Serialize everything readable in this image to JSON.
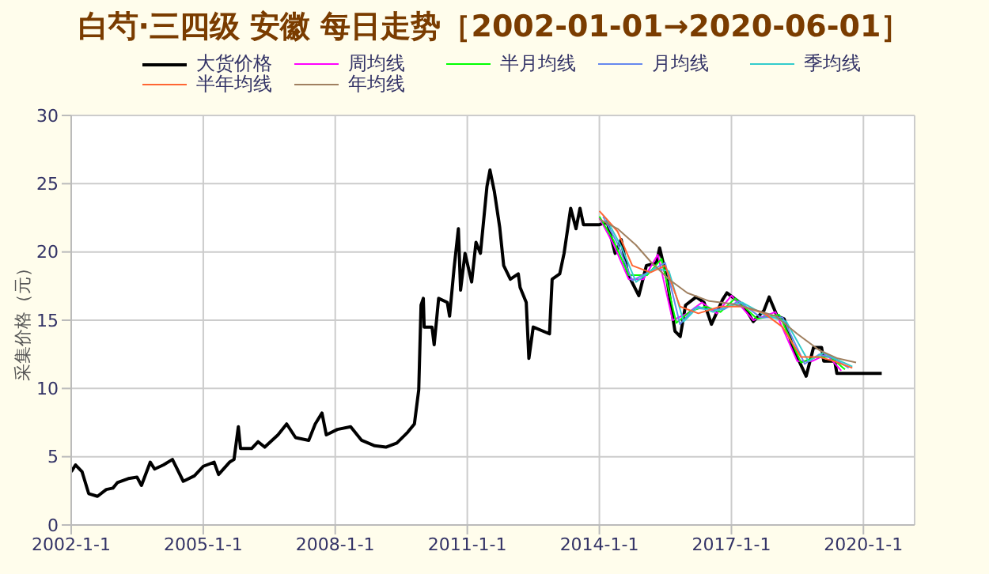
{
  "chart_data": {
    "type": "line",
    "title": "白芍·三四级 安徽 每日走势［2002-01-01→2020-06-01］",
    "ylabel": "采集价格（元）",
    "xlim": [
      "2002-01-01",
      "2021-03-01"
    ],
    "xticks": [
      {
        "value": "2002-01-01",
        "label": "2002-1-1"
      },
      {
        "value": "2005-01-01",
        "label": "2005-1-1"
      },
      {
        "value": "2008-01-01",
        "label": "2008-1-1"
      },
      {
        "value": "2011-01-01",
        "label": "2011-1-1"
      },
      {
        "value": "2014-01-01",
        "label": "2014-1-1"
      },
      {
        "value": "2017-01-01",
        "label": "2017-1-1"
      },
      {
        "value": "2020-01-01",
        "label": "2020-1-1"
      }
    ],
    "ylim": [
      0,
      30
    ],
    "yticks": [
      0,
      5,
      10,
      15,
      20,
      25,
      30
    ],
    "grid": true,
    "legend": "top",
    "marker": "none",
    "line_style": "solid",
    "series": [
      {
        "name": "大货价格",
        "color": "#000000",
        "x": [
          "2002-01-01",
          "2002-02-06",
          "2002-04-01",
          "2002-05-26",
          "2002-08-07",
          "2002-10-19",
          "2002-12-13",
          "2003-01-19",
          "2003-04-20",
          "2003-07-01",
          "2003-08-07",
          "2003-10-19",
          "2003-11-24",
          "2004-02-06",
          "2004-04-20",
          "2004-07-19",
          "2004-10-19",
          "2005-01-01",
          "2005-04-01",
          "2005-05-08",
          "2005-08-07",
          "2005-09-13",
          "2005-10-19",
          "2005-11-06",
          "2006-02-06",
          "2006-04-01",
          "2006-05-26",
          "2006-09-13",
          "2006-11-24",
          "2007-02-06",
          "2007-05-26",
          "2007-07-19",
          "2007-09-13",
          "2007-10-19",
          "2008-01-19",
          "2008-05-08",
          "2008-08-07",
          "2008-11-24",
          "2009-02-24",
          "2009-05-26",
          "2009-08-25",
          "2009-10-19",
          "2009-11-24",
          "2009-12-13",
          "2010-01-01",
          "2010-01-08",
          "2010-03-14",
          "2010-04-01",
          "2010-05-08",
          "2010-07-19",
          "2010-08-07",
          "2010-09-13",
          "2010-10-19",
          "2010-11-06",
          "2010-12-13",
          "2011-02-06",
          "2011-03-14",
          "2011-04-20",
          "2011-06-13",
          "2011-07-08",
          "2011-08-14",
          "2011-09-27",
          "2011-10-30",
          "2011-12-24",
          "2012-02-28",
          "2012-03-14",
          "2012-05-04",
          "2012-05-26",
          "2012-07-01",
          "2012-11-13",
          "2012-12-05",
          "2013-02-06",
          "2013-03-14",
          "2013-05-08",
          "2013-06-21",
          "2013-07-24",
          "2013-08-22",
          "2014-01-01",
          "2014-03-07",
          "2014-05-12",
          "2014-07-01",
          "2014-08-25",
          "2014-11-24",
          "2015-01-26",
          "2015-04-20",
          "2015-05-16",
          "2015-07-16",
          "2015-09-20",
          "2015-11-03",
          "2015-12-17",
          "2016-03-14",
          "2016-05-19",
          "2016-07-19",
          "2016-10-19",
          "2016-11-24",
          "2017-04-09",
          "2017-07-01",
          "2017-09-27",
          "2017-11-10",
          "2018-01-15",
          "2018-03-14",
          "2018-05-26",
          "2018-07-27",
          "2018-09-13",
          "2018-11-13",
          "2019-01-19",
          "2019-02-06",
          "2019-05-08",
          "2019-05-26",
          "2020-06-01"
        ],
        "values": [
          3.9,
          4.4,
          3.9,
          2.3,
          2.1,
          2.6,
          2.7,
          3.1,
          3.4,
          3.5,
          2.9,
          4.6,
          4.1,
          4.4,
          4.8,
          3.2,
          3.6,
          4.3,
          4.6,
          3.7,
          4.6,
          4.8,
          7.2,
          5.6,
          5.6,
          6.1,
          5.7,
          6.6,
          7.4,
          6.4,
          6.2,
          7.4,
          8.2,
          6.6,
          7.0,
          7.2,
          6.2,
          5.8,
          5.7,
          6.0,
          6.8,
          7.4,
          9.9,
          16.1,
          16.6,
          14.5,
          14.5,
          13.2,
          16.6,
          16.3,
          15.3,
          18.8,
          21.7,
          17.2,
          19.9,
          17.8,
          20.7,
          19.9,
          24.8,
          26.0,
          24.4,
          21.8,
          19.0,
          18.0,
          18.4,
          17.4,
          16.3,
          12.2,
          14.5,
          14.0,
          18.0,
          18.4,
          19.9,
          23.2,
          21.7,
          23.2,
          22.0,
          22.0,
          22.2,
          19.9,
          20.9,
          18.4,
          16.8,
          19.0,
          19.2,
          20.3,
          18.0,
          14.2,
          13.8,
          16.1,
          16.7,
          16.3,
          14.7,
          16.5,
          17.0,
          16.1,
          14.9,
          15.7,
          16.7,
          15.3,
          15.1,
          13.0,
          11.8,
          10.9,
          13.0,
          13.0,
          12.0,
          12.0,
          11.1,
          11.1
        ]
      },
      {
        "name": "周均线",
        "color": "#ff00ff",
        "x": [
          "2014-01",
          "2014-05",
          "2014-09",
          "2015-01",
          "2015-05",
          "2015-09",
          "2016-01",
          "2016-05",
          "2016-09",
          "2017-01",
          "2017-07",
          "2018-01",
          "2018-07",
          "2018-11",
          "2019-03",
          "2019-07"
        ],
        "values": [
          22.5,
          20.5,
          18.0,
          18.0,
          19.8,
          15.0,
          15.5,
          16.3,
          15.5,
          16.8,
          15.0,
          15.6,
          12.0,
          12.0,
          12.5,
          11.3
        ]
      },
      {
        "name": "半月均线",
        "color": "#00ff00",
        "x": [
          "2014-01",
          "2014-05",
          "2014-09",
          "2015-02",
          "2015-06",
          "2015-10",
          "2016-02",
          "2016-06",
          "2016-10",
          "2017-02",
          "2017-08",
          "2018-02",
          "2018-08",
          "2018-12",
          "2019-04",
          "2019-08"
        ],
        "values": [
          22.6,
          20.8,
          18.3,
          18.3,
          19.5,
          14.8,
          15.7,
          16.0,
          15.6,
          16.6,
          15.1,
          15.4,
          11.9,
          12.3,
          12.3,
          11.4
        ]
      },
      {
        "name": "月均线",
        "color": "#6688ee",
        "x": [
          "2014-02",
          "2014-06",
          "2014-10",
          "2015-03",
          "2015-07",
          "2015-11",
          "2016-03",
          "2016-07",
          "2016-11",
          "2017-03",
          "2017-09",
          "2018-03",
          "2018-09",
          "2019-01",
          "2019-05",
          "2019-09"
        ],
        "values": [
          22.6,
          20.6,
          17.9,
          18.6,
          19.2,
          14.7,
          15.9,
          15.8,
          15.8,
          16.4,
          15.2,
          15.2,
          11.8,
          12.5,
          12.2,
          11.5
        ]
      },
      {
        "name": "季均线",
        "color": "#33cccc",
        "x": [
          "2014-03",
          "2014-07",
          "2014-11",
          "2015-04",
          "2015-08",
          "2015-12",
          "2016-04",
          "2016-08",
          "2016-12",
          "2017-04",
          "2017-10",
          "2018-04",
          "2018-10",
          "2019-02",
          "2019-06",
          "2019-10"
        ],
        "values": [
          22.4,
          20.4,
          17.8,
          18.8,
          18.6,
          14.9,
          16.0,
          15.6,
          16.0,
          16.3,
          15.4,
          14.9,
          12.0,
          12.6,
          12.1,
          11.6
        ]
      },
      {
        "name": "半年均线",
        "color": "#ff6633",
        "x": [
          "2014-01",
          "2014-06",
          "2014-10",
          "2015-03",
          "2015-07",
          "2015-11",
          "2016-04",
          "2016-10",
          "2017-04",
          "2017-10",
          "2018-03",
          "2018-08",
          "2019-01",
          "2019-05",
          "2019-10"
        ],
        "values": [
          23.0,
          21.5,
          19.0,
          18.5,
          19.0,
          16.0,
          15.5,
          16.0,
          16.0,
          15.5,
          14.5,
          12.3,
          12.3,
          12.0,
          11.5
        ]
      },
      {
        "name": "年均线",
        "color": "#a08060",
        "x": [
          "2014-01",
          "2014-06",
          "2014-11",
          "2015-03",
          "2015-08",
          "2016-01",
          "2016-07",
          "2017-01",
          "2017-07",
          "2018-01",
          "2018-07",
          "2019-01",
          "2019-06",
          "2019-11"
        ],
        "values": [
          22.4,
          21.7,
          20.5,
          19.3,
          18.0,
          17.0,
          16.4,
          16.2,
          15.8,
          15.3,
          14.0,
          12.8,
          12.2,
          11.9
        ]
      }
    ]
  }
}
